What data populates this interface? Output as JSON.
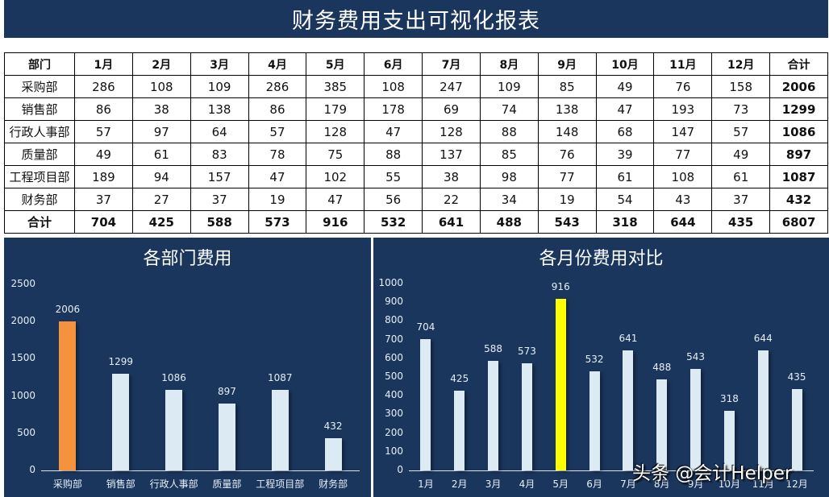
{
  "title": "财务费用支出可视化报表",
  "table": {
    "headers": [
      "部门",
      "1月",
      "2月",
      "3月",
      "4月",
      "5月",
      "6月",
      "7月",
      "8月",
      "9月",
      "10月",
      "11月",
      "12月",
      "合计"
    ],
    "rows": [
      {
        "dept": "采购部",
        "values": [
          286,
          108,
          109,
          286,
          385,
          108,
          247,
          109,
          85,
          49,
          76,
          158
        ],
        "total": 2006
      },
      {
        "dept": "销售部",
        "values": [
          86,
          38,
          138,
          86,
          179,
          178,
          69,
          74,
          138,
          47,
          193,
          73
        ],
        "total": 1299
      },
      {
        "dept": "行政人事部",
        "values": [
          57,
          97,
          64,
          57,
          128,
          47,
          128,
          88,
          148,
          68,
          147,
          57
        ],
        "total": 1086
      },
      {
        "dept": "质量部",
        "values": [
          49,
          61,
          83,
          78,
          75,
          88,
          137,
          85,
          76,
          39,
          77,
          49
        ],
        "total": 897
      },
      {
        "dept": "工程项目部",
        "values": [
          189,
          94,
          157,
          47,
          102,
          55,
          38,
          98,
          77,
          61,
          108,
          61
        ],
        "total": 1087
      },
      {
        "dept": "财务部",
        "values": [
          37,
          27,
          37,
          19,
          47,
          56,
          22,
          34,
          19,
          54,
          43,
          37
        ],
        "total": 432
      }
    ],
    "total_row": {
      "label": "合计",
      "values": [
        704,
        425,
        588,
        573,
        916,
        532,
        641,
        488,
        543,
        318,
        644,
        435
      ],
      "total": 6807
    }
  },
  "chart_data": [
    {
      "type": "bar",
      "title": "各部门费用",
      "categories": [
        "采购部",
        "销售部",
        "行政人事部",
        "质量部",
        "工程项目部",
        "财务部"
      ],
      "values": [
        2006,
        1299,
        1086,
        897,
        1087,
        432
      ],
      "yticks": [
        0,
        500,
        1000,
        1500,
        2000,
        2500
      ],
      "ylim": [
        0,
        2500
      ],
      "xlabel": "",
      "ylabel": "",
      "grid": false,
      "highlight": {
        "index": 0,
        "color": "#f5923e"
      },
      "bar_color": "#dbeaf3"
    },
    {
      "type": "bar",
      "title": "各月份费用对比",
      "categories": [
        "1月",
        "2月",
        "3月",
        "4月",
        "5月",
        "6月",
        "7月",
        "8月",
        "9月",
        "10月",
        "11月",
        "12月"
      ],
      "values": [
        704,
        425,
        588,
        573,
        916,
        532,
        641,
        488,
        543,
        318,
        644,
        435
      ],
      "yticks": [
        0,
        100,
        200,
        300,
        400,
        500,
        600,
        700,
        800,
        900,
        1000
      ],
      "ylim": [
        0,
        1000
      ],
      "xlabel": "",
      "ylabel": "",
      "grid": false,
      "highlight": {
        "index": 4,
        "color": "#ffff00"
      },
      "bar_color": "#dbeaf3"
    }
  ],
  "watermark": "头条 @会计Helper",
  "colors": {
    "panel": "#1b365d",
    "bar": "#dbeaf3",
    "dept_highlight": "#f5923e",
    "month_highlight": "#ffff00"
  }
}
